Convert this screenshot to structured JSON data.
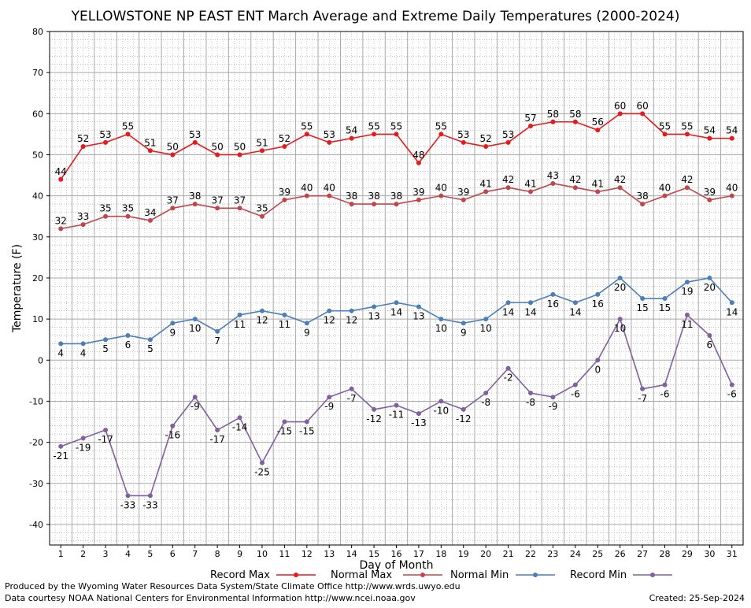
{
  "chart_data": {
    "type": "line",
    "title": "YELLOWSTONE NP EAST ENT March Average and Extreme Daily Temperatures (2000-2024)",
    "xlabel": "Day of Month",
    "ylabel": "Temperature (F)",
    "ylim": [
      -45,
      80
    ],
    "yticks": [
      -40,
      -30,
      -20,
      -10,
      0,
      10,
      20,
      30,
      40,
      50,
      60,
      70,
      80
    ],
    "x": [
      1,
      2,
      3,
      4,
      5,
      6,
      7,
      8,
      9,
      10,
      11,
      12,
      13,
      14,
      15,
      16,
      17,
      18,
      19,
      20,
      21,
      22,
      23,
      24,
      25,
      26,
      27,
      28,
      29,
      30,
      31
    ],
    "grid": true,
    "legend_position": "bottom",
    "series": [
      {
        "name": "Record Max",
        "color": "#e8191b",
        "values": [
          44,
          52,
          53,
          55,
          51,
          50,
          53,
          50,
          50,
          51,
          52,
          55,
          53,
          54,
          55,
          55,
          48,
          55,
          53,
          52,
          53,
          57,
          58,
          58,
          56,
          60,
          60,
          55,
          55,
          54,
          54
        ]
      },
      {
        "name": "Normal Max",
        "color": "#c0464b",
        "values": [
          32,
          33,
          35,
          35,
          34,
          37,
          38,
          37,
          37,
          35,
          39,
          40,
          40,
          38,
          38,
          38,
          39,
          40,
          39,
          41,
          42,
          41,
          43,
          42,
          41,
          42,
          38,
          40,
          42,
          39,
          40
        ]
      },
      {
        "name": "Normal Min",
        "color": "#4a7fb8",
        "values": [
          4,
          4,
          5,
          6,
          5,
          9,
          10,
          7,
          11,
          12,
          11,
          9,
          12,
          12,
          13,
          14,
          13,
          10,
          9,
          10,
          14,
          14,
          16,
          14,
          16,
          20,
          15,
          15,
          19,
          20,
          14
        ]
      },
      {
        "name": "Record Min",
        "color": "#8060a0",
        "values": [
          -21,
          -19,
          -17,
          -33,
          -33,
          -16,
          -9,
          -17,
          -14,
          -25,
          -15,
          -15,
          -9,
          -7,
          -12,
          -11,
          -13,
          -10,
          -12,
          -8,
          -2,
          -8,
          -9,
          -6,
          0,
          10,
          -7,
          -6,
          11,
          6,
          -6
        ]
      }
    ]
  },
  "footer": {
    "credit1": "Produced by the Wyoming Water Resources Data System/State Climate Office http://www.wrds.uwyo.edu",
    "credit2": "Data courtesy NOAA National Centers for Environmental Information http://www.ncei.noaa.gov",
    "created": "Created:  25-Sep-2024"
  }
}
